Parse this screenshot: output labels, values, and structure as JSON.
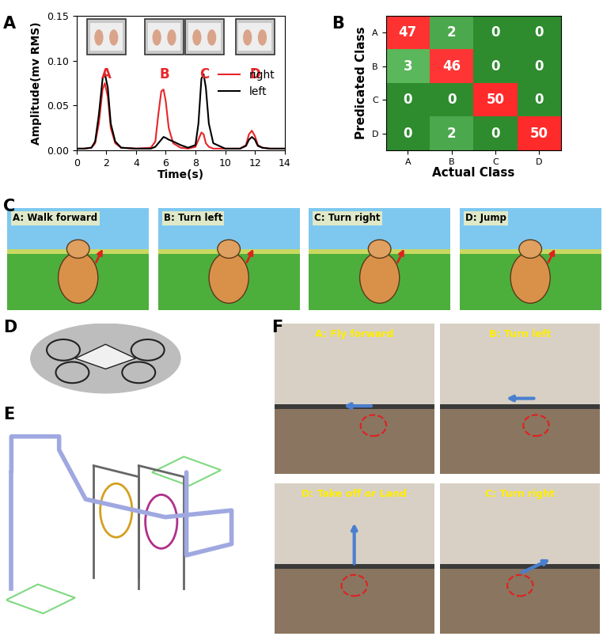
{
  "chart_data": [
    {
      "type": "line",
      "x_label": "Time(s)",
      "y_label": "Amplitude(mv RMS)",
      "x": [
        0,
        0.5,
        1.0,
        1.25,
        1.5,
        1.75,
        1.9,
        2.1,
        2.3,
        2.6,
        3.0,
        4.0,
        5.0,
        5.3,
        5.5,
        5.7,
        5.85,
        6.0,
        6.2,
        6.5,
        7.0,
        7.5,
        8.0,
        8.2,
        8.4,
        8.55,
        8.7,
        8.9,
        9.2,
        10.0,
        11.0,
        11.4,
        11.6,
        11.8,
        12.0,
        12.2,
        12.5,
        13.0,
        14.0
      ],
      "series": [
        {
          "name": "right",
          "color": "#e8262a",
          "values": [
            0.002,
            0.002,
            0.003,
            0.008,
            0.03,
            0.068,
            0.075,
            0.06,
            0.025,
            0.008,
            0.003,
            0.002,
            0.003,
            0.01,
            0.04,
            0.066,
            0.068,
            0.055,
            0.025,
            0.008,
            0.003,
            0.002,
            0.004,
            0.012,
            0.02,
            0.018,
            0.008,
            0.004,
            0.002,
            0.002,
            0.002,
            0.006,
            0.018,
            0.022,
            0.016,
            0.006,
            0.003,
            0.002,
            0.002
          ]
        },
        {
          "name": "left",
          "color": "#000000",
          "values": [
            0.002,
            0.002,
            0.003,
            0.01,
            0.04,
            0.08,
            0.086,
            0.07,
            0.03,
            0.01,
            0.003,
            0.002,
            0.002,
            0.004,
            0.008,
            0.012,
            0.015,
            0.014,
            0.012,
            0.01,
            0.006,
            0.003,
            0.006,
            0.03,
            0.08,
            0.085,
            0.07,
            0.03,
            0.008,
            0.002,
            0.002,
            0.005,
            0.012,
            0.015,
            0.012,
            0.005,
            0.003,
            0.002,
            0.002
          ]
        }
      ],
      "xlim": [
        0,
        14
      ],
      "xticks": [
        0,
        2,
        4,
        6,
        8,
        10,
        12,
        14
      ],
      "ylim": [
        0,
        0.15
      ],
      "yticks": [
        {
          "value": 0,
          "label": "0.00"
        },
        {
          "value": 0.05,
          "label": "0.05"
        },
        {
          "value": 0.1,
          "label": "0.10"
        },
        {
          "value": 0.15,
          "label": "0.15"
        }
      ],
      "legend": "center right",
      "annotations": [
        {
          "text": "A",
          "x": 2,
          "y": 0.093,
          "color": "#e8262a"
        },
        {
          "text": "B",
          "x": 5.9,
          "y": 0.093,
          "color": "#e8262a"
        },
        {
          "text": "C",
          "x": 8.6,
          "y": 0.093,
          "color": "#e8262a"
        },
        {
          "text": "D",
          "x": 12,
          "y": 0.093,
          "color": "#e8262a"
        }
      ]
    },
    {
      "type": "heatmap",
      "x_label": "Actual Class",
      "y_label": "Predicated Class",
      "x_categories": [
        "A",
        "B",
        "C",
        "D"
      ],
      "y_categories": [
        "A",
        "B",
        "C",
        "D"
      ],
      "cells": [
        [
          47,
          2,
          0,
          0
        ],
        [
          3,
          46,
          0,
          0
        ],
        [
          0,
          0,
          50,
          0
        ],
        [
          0,
          2,
          0,
          50
        ]
      ],
      "data_labels": true
    }
  ],
  "panel_labels": [
    "A",
    "B",
    "C",
    "D",
    "E",
    "F"
  ],
  "panel_C": {
    "images": [
      "A: Walk forward",
      "B: Turn left",
      "C: Turn right",
      "D: Jump"
    ]
  },
  "panel_F": {
    "images": [
      "A: Fly forward",
      "B: Turn left",
      "D: Take off or Land",
      "C: Turn right"
    ]
  }
}
